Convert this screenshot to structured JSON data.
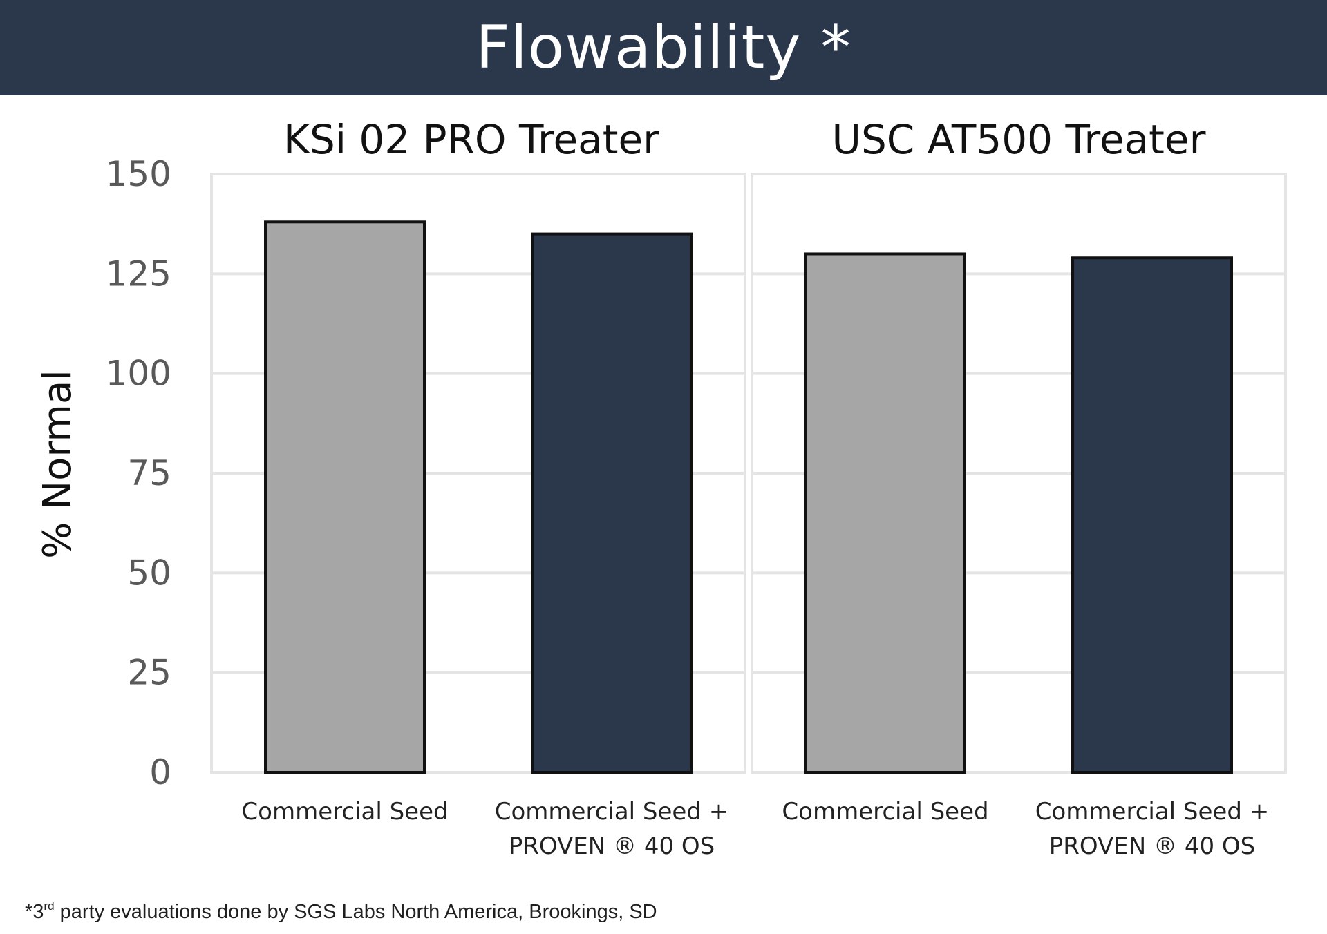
{
  "header": {
    "title": "Flowability *"
  },
  "footnote": {
    "prefix": "*3",
    "superscript": "rd",
    "text": " party evaluations done by SGS Labs North America, Brookings, SD"
  },
  "colors": {
    "header_bg": "#2b374b",
    "commercial_seed": "#a6a6a6",
    "proven": "#2b374b",
    "grid": "#e4e4e4"
  },
  "chart_data": {
    "type": "bar",
    "title": "Flowability *",
    "ylabel": "% Normal",
    "xlabel": "",
    "ylim": [
      0,
      150
    ],
    "yticks": [
      0,
      25,
      50,
      75,
      100,
      125,
      150
    ],
    "grid": true,
    "panels": [
      {
        "title": "KSi 02 PRO Treater",
        "categories": [
          [
            "Commercial Seed"
          ],
          [
            "Commercial Seed +",
            "PROVEN ® 40 OS"
          ]
        ],
        "values": [
          138,
          135
        ]
      },
      {
        "title": "USC AT500 Treater",
        "categories": [
          [
            "Commercial Seed"
          ],
          [
            "Commercial Seed +",
            "PROVEN ® 40 OS"
          ]
        ],
        "values": [
          130,
          129
        ]
      }
    ]
  }
}
